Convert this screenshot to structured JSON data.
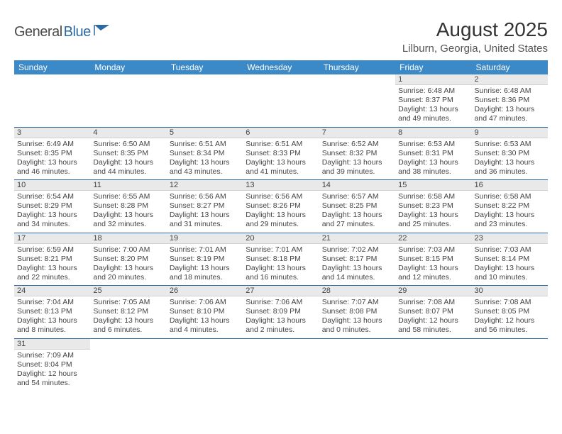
{
  "brand": {
    "part1": "General",
    "part2": "Blue"
  },
  "title": "August 2025",
  "location": "Lilburn, Georgia, United States",
  "colors": {
    "header_bg": "#3b89c7",
    "header_fg": "#ffffff",
    "rule": "#2d6aa3",
    "daynum_bg": "#e9e9e9",
    "text": "#444444"
  },
  "weekdays": [
    "Sunday",
    "Monday",
    "Tuesday",
    "Wednesday",
    "Thursday",
    "Friday",
    "Saturday"
  ],
  "weeks": [
    [
      null,
      null,
      null,
      null,
      null,
      {
        "n": "1",
        "sr": "6:48 AM",
        "ss": "8:37 PM",
        "dl": "13 hours and 49 minutes."
      },
      {
        "n": "2",
        "sr": "6:48 AM",
        "ss": "8:36 PM",
        "dl": "13 hours and 47 minutes."
      }
    ],
    [
      {
        "n": "3",
        "sr": "6:49 AM",
        "ss": "8:35 PM",
        "dl": "13 hours and 46 minutes."
      },
      {
        "n": "4",
        "sr": "6:50 AM",
        "ss": "8:35 PM",
        "dl": "13 hours and 44 minutes."
      },
      {
        "n": "5",
        "sr": "6:51 AM",
        "ss": "8:34 PM",
        "dl": "13 hours and 43 minutes."
      },
      {
        "n": "6",
        "sr": "6:51 AM",
        "ss": "8:33 PM",
        "dl": "13 hours and 41 minutes."
      },
      {
        "n": "7",
        "sr": "6:52 AM",
        "ss": "8:32 PM",
        "dl": "13 hours and 39 minutes."
      },
      {
        "n": "8",
        "sr": "6:53 AM",
        "ss": "8:31 PM",
        "dl": "13 hours and 38 minutes."
      },
      {
        "n": "9",
        "sr": "6:53 AM",
        "ss": "8:30 PM",
        "dl": "13 hours and 36 minutes."
      }
    ],
    [
      {
        "n": "10",
        "sr": "6:54 AM",
        "ss": "8:29 PM",
        "dl": "13 hours and 34 minutes."
      },
      {
        "n": "11",
        "sr": "6:55 AM",
        "ss": "8:28 PM",
        "dl": "13 hours and 32 minutes."
      },
      {
        "n": "12",
        "sr": "6:56 AM",
        "ss": "8:27 PM",
        "dl": "13 hours and 31 minutes."
      },
      {
        "n": "13",
        "sr": "6:56 AM",
        "ss": "8:26 PM",
        "dl": "13 hours and 29 minutes."
      },
      {
        "n": "14",
        "sr": "6:57 AM",
        "ss": "8:25 PM",
        "dl": "13 hours and 27 minutes."
      },
      {
        "n": "15",
        "sr": "6:58 AM",
        "ss": "8:23 PM",
        "dl": "13 hours and 25 minutes."
      },
      {
        "n": "16",
        "sr": "6:58 AM",
        "ss": "8:22 PM",
        "dl": "13 hours and 23 minutes."
      }
    ],
    [
      {
        "n": "17",
        "sr": "6:59 AM",
        "ss": "8:21 PM",
        "dl": "13 hours and 22 minutes."
      },
      {
        "n": "18",
        "sr": "7:00 AM",
        "ss": "8:20 PM",
        "dl": "13 hours and 20 minutes."
      },
      {
        "n": "19",
        "sr": "7:01 AM",
        "ss": "8:19 PM",
        "dl": "13 hours and 18 minutes."
      },
      {
        "n": "20",
        "sr": "7:01 AM",
        "ss": "8:18 PM",
        "dl": "13 hours and 16 minutes."
      },
      {
        "n": "21",
        "sr": "7:02 AM",
        "ss": "8:17 PM",
        "dl": "13 hours and 14 minutes."
      },
      {
        "n": "22",
        "sr": "7:03 AM",
        "ss": "8:15 PM",
        "dl": "13 hours and 12 minutes."
      },
      {
        "n": "23",
        "sr": "7:03 AM",
        "ss": "8:14 PM",
        "dl": "13 hours and 10 minutes."
      }
    ],
    [
      {
        "n": "24",
        "sr": "7:04 AM",
        "ss": "8:13 PM",
        "dl": "13 hours and 8 minutes."
      },
      {
        "n": "25",
        "sr": "7:05 AM",
        "ss": "8:12 PM",
        "dl": "13 hours and 6 minutes."
      },
      {
        "n": "26",
        "sr": "7:06 AM",
        "ss": "8:10 PM",
        "dl": "13 hours and 4 minutes."
      },
      {
        "n": "27",
        "sr": "7:06 AM",
        "ss": "8:09 PM",
        "dl": "13 hours and 2 minutes."
      },
      {
        "n": "28",
        "sr": "7:07 AM",
        "ss": "8:08 PM",
        "dl": "13 hours and 0 minutes."
      },
      {
        "n": "29",
        "sr": "7:08 AM",
        "ss": "8:07 PM",
        "dl": "12 hours and 58 minutes."
      },
      {
        "n": "30",
        "sr": "7:08 AM",
        "ss": "8:05 PM",
        "dl": "12 hours and 56 minutes."
      }
    ],
    [
      {
        "n": "31",
        "sr": "7:09 AM",
        "ss": "8:04 PM",
        "dl": "12 hours and 54 minutes."
      },
      null,
      null,
      null,
      null,
      null,
      null
    ]
  ],
  "labels": {
    "sunrise": "Sunrise:",
    "sunset": "Sunset:",
    "daylight": "Daylight:"
  }
}
